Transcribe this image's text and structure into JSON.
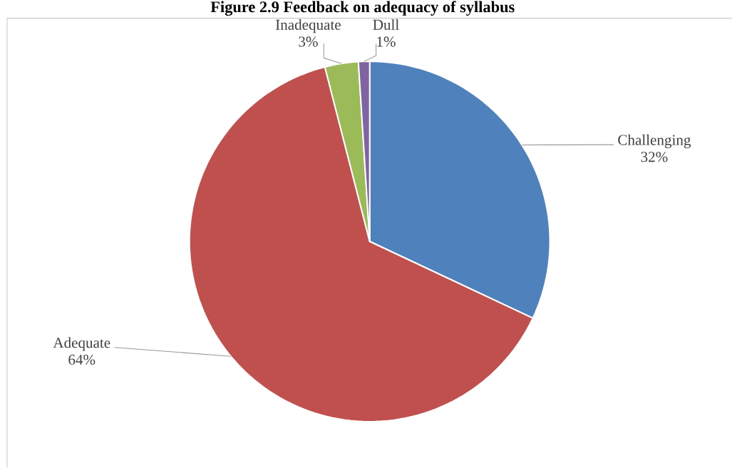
{
  "chart_data": {
    "type": "pie",
    "title": "Figure 2.9  Feedback on adequacy of syllabus",
    "categories": [
      "Challenging",
      "Adequate",
      "Inadequate",
      "Dull"
    ],
    "values": [
      32,
      64,
      3,
      1
    ],
    "value_labels": [
      "32%",
      "64%",
      "3%",
      "1%"
    ],
    "colors": [
      "#4f81bd",
      "#c0504d",
      "#9bbb59",
      "#8064a2"
    ]
  }
}
